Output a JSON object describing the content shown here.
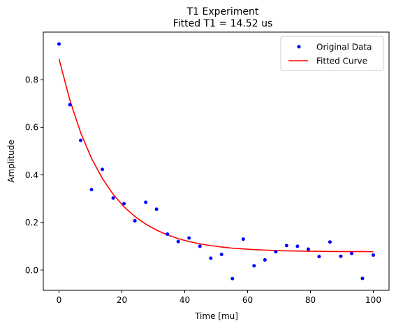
{
  "chart_data": {
    "type": "scatter",
    "title": "T1 Experiment",
    "subtitle": "Fitted T1 = 14.52 us",
    "xlabel": "Time [mu]",
    "ylabel": "Amplitude",
    "xlim": [
      -5.0,
      105.0
    ],
    "ylim": [
      -0.085,
      1.0
    ],
    "xticks": [
      0,
      20,
      40,
      60,
      80,
      100
    ],
    "yticks": [
      0.0,
      0.2,
      0.4,
      0.6,
      0.8
    ],
    "xtick_labels": [
      "0",
      "20",
      "40",
      "60",
      "80",
      "100"
    ],
    "ytick_labels": [
      "0.0",
      "0.2",
      "0.4",
      "0.6",
      "0.8"
    ],
    "grid": false,
    "legend_position": "top-right",
    "series": [
      {
        "name": "Original Data",
        "kind": "scatter",
        "color": "#0000ff",
        "x": [
          0.0,
          3.45,
          6.9,
          10.34,
          13.79,
          17.24,
          20.69,
          24.14,
          27.59,
          31.03,
          34.48,
          37.93,
          41.38,
          44.83,
          48.28,
          51.72,
          55.17,
          58.62,
          62.07,
          65.52,
          68.97,
          72.41,
          75.86,
          79.31,
          82.76,
          86.21,
          89.66,
          93.1,
          96.55,
          100.0
        ],
        "y": [
          0.95,
          0.695,
          0.545,
          0.338,
          0.423,
          0.303,
          0.279,
          0.207,
          0.285,
          0.256,
          0.151,
          0.12,
          0.135,
          0.1,
          0.05,
          0.066,
          -0.036,
          0.13,
          0.018,
          0.043,
          0.077,
          0.103,
          0.1,
          0.088,
          0.057,
          0.118,
          0.058,
          0.07,
          -0.035,
          0.063
        ]
      },
      {
        "name": "Fitted Curve",
        "kind": "line",
        "color": "#ff0000",
        "x": [
          0.0,
          3.45,
          6.9,
          10.34,
          13.79,
          17.24,
          20.69,
          24.14,
          27.59,
          31.03,
          34.48,
          37.93,
          41.38,
          44.83,
          48.28,
          51.72,
          55.17,
          58.62,
          62.07,
          65.52,
          68.97,
          72.41,
          75.86,
          79.31,
          82.76,
          86.21,
          89.66,
          93.1,
          96.55,
          100.0
        ],
        "y": [
          0.888,
          0.714,
          0.577,
          0.469,
          0.385,
          0.318,
          0.266,
          0.225,
          0.193,
          0.168,
          0.148,
          0.132,
          0.12,
          0.11,
          0.103,
          0.097,
          0.092,
          0.089,
          0.086,
          0.084,
          0.082,
          0.081,
          0.08,
          0.079,
          0.079,
          0.078,
          0.078,
          0.078,
          0.078,
          0.077
        ]
      }
    ]
  }
}
